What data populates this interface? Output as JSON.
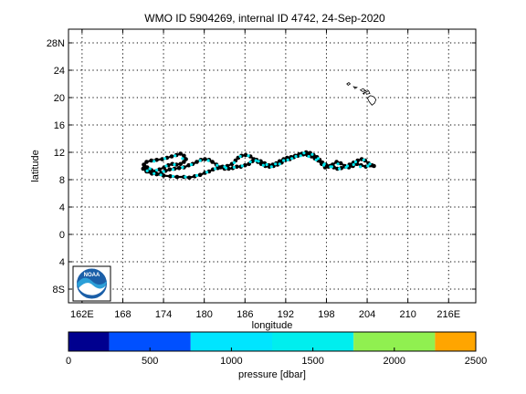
{
  "chart_data": {
    "type": "scatter",
    "title": "WMO ID 5904269, internal ID 4742, 24-Sep-2020",
    "xlabel": "longitude",
    "ylabel": "latitude",
    "xlim": [
      160,
      220
    ],
    "ylim": [
      -10,
      30
    ],
    "grid": true,
    "x_ticks": [
      {
        "value": 162,
        "label": "162E"
      },
      {
        "value": 168,
        "label": "168"
      },
      {
        "value": 174,
        "label": "174"
      },
      {
        "value": 180,
        "label": "180"
      },
      {
        "value": 186,
        "label": "186"
      },
      {
        "value": 192,
        "label": "192"
      },
      {
        "value": 198,
        "label": "198"
      },
      {
        "value": 204,
        "label": "204"
      },
      {
        "value": 210,
        "label": "210"
      },
      {
        "value": 216,
        "label": "216E"
      }
    ],
    "y_ticks": [
      {
        "value": 28,
        "label": "28N"
      },
      {
        "value": 24,
        "label": "24"
      },
      {
        "value": 20,
        "label": "20"
      },
      {
        "value": 16,
        "label": "16"
      },
      {
        "value": 12,
        "label": "12"
      },
      {
        "value": 8,
        "label": "8"
      },
      {
        "value": 4,
        "label": "4"
      },
      {
        "value": 0,
        "label": "0"
      },
      {
        "value": -4,
        "label": "4"
      },
      {
        "value": -8,
        "label": "8S"
      }
    ],
    "series": [
      {
        "marker_color": "#000000",
        "parking_color": "#00e5ee",
        "points": [
          [
            205.0,
            10.0
          ],
          [
            204.4,
            10.1
          ],
          [
            203.8,
            9.9
          ],
          [
            203.1,
            10.1
          ],
          [
            202.5,
            10.3
          ],
          [
            201.9,
            10.0
          ],
          [
            201.3,
            9.8
          ],
          [
            200.7,
            10.0
          ],
          [
            200.1,
            10.4
          ],
          [
            199.5,
            10.6
          ],
          [
            198.9,
            10.2
          ],
          [
            198.3,
            9.9
          ],
          [
            197.8,
            9.8
          ],
          [
            197.3,
            10.3
          ],
          [
            196.8,
            10.8
          ],
          [
            196.3,
            11.1
          ],
          [
            195.8,
            11.4
          ],
          [
            195.2,
            11.6
          ],
          [
            194.6,
            11.7
          ],
          [
            194.0,
            11.7
          ],
          [
            193.4,
            11.5
          ],
          [
            192.8,
            11.3
          ],
          [
            192.2,
            11.2
          ],
          [
            191.7,
            11.0
          ],
          [
            191.1,
            10.7
          ],
          [
            190.6,
            10.4
          ],
          [
            190.1,
            10.2
          ],
          [
            189.5,
            10.1
          ],
          [
            188.9,
            10.4
          ],
          [
            188.3,
            10.7
          ],
          [
            187.7,
            10.9
          ],
          [
            187.1,
            10.7
          ],
          [
            186.6,
            10.3
          ],
          [
            186.0,
            10.1
          ],
          [
            185.4,
            9.9
          ],
          [
            184.8,
            9.9
          ],
          [
            184.2,
            9.7
          ],
          [
            183.6,
            9.6
          ],
          [
            183.0,
            9.6
          ],
          [
            182.4,
            9.8
          ],
          [
            181.8,
            10.2
          ],
          [
            181.2,
            10.6
          ],
          [
            180.7,
            10.9
          ],
          [
            180.1,
            11.0
          ],
          [
            179.5,
            10.9
          ],
          [
            178.9,
            10.6
          ],
          [
            178.3,
            10.3
          ],
          [
            177.7,
            10.1
          ],
          [
            177.0,
            9.8
          ],
          [
            176.3,
            9.7
          ],
          [
            175.6,
            9.6
          ],
          [
            174.9,
            9.5
          ],
          [
            174.3,
            9.3
          ],
          [
            173.7,
            9.0
          ],
          [
            173.0,
            8.8
          ],
          [
            172.3,
            8.9
          ],
          [
            171.7,
            9.2
          ],
          [
            171.3,
            9.7
          ],
          [
            171.1,
            10.2
          ],
          [
            171.5,
            10.6
          ],
          [
            172.2,
            10.8
          ],
          [
            173.0,
            10.9
          ],
          [
            173.8,
            11.0
          ],
          [
            174.5,
            11.2
          ],
          [
            175.2,
            11.4
          ],
          [
            175.9,
            11.6
          ],
          [
            176.5,
            11.8
          ],
          [
            177.0,
            11.5
          ],
          [
            177.3,
            11.0
          ],
          [
            177.0,
            10.6
          ],
          [
            176.5,
            10.3
          ],
          [
            175.9,
            10.2
          ],
          [
            175.3,
            10.3
          ],
          [
            174.7,
            10.1
          ],
          [
            174.1,
            9.8
          ],
          [
            173.4,
            9.5
          ],
          [
            172.8,
            9.2
          ],
          [
            172.2,
            9.4
          ],
          [
            171.6,
            9.8
          ],
          [
            171.2,
            10.0
          ],
          [
            171.0,
            9.6
          ],
          [
            171.5,
            9.2
          ],
          [
            172.3,
            8.9
          ],
          [
            173.0,
            8.8
          ],
          [
            174.0,
            8.6
          ],
          [
            175.0,
            8.5
          ],
          [
            176.0,
            8.4
          ],
          [
            177.0,
            8.4
          ],
          [
            177.8,
            8.3
          ],
          [
            178.6,
            8.5
          ],
          [
            179.4,
            8.7
          ],
          [
            180.1,
            9.0
          ],
          [
            180.7,
            9.2
          ],
          [
            181.3,
            9.5
          ],
          [
            182.0,
            9.7
          ],
          [
            182.7,
            9.9
          ],
          [
            183.4,
            10.0
          ],
          [
            184.1,
            10.3
          ],
          [
            184.6,
            10.8
          ],
          [
            185.0,
            11.2
          ],
          [
            185.5,
            11.5
          ],
          [
            186.1,
            11.6
          ],
          [
            186.8,
            11.4
          ],
          [
            187.3,
            11.0
          ],
          [
            187.9,
            10.6
          ],
          [
            188.4,
            10.3
          ],
          [
            189.0,
            10.0
          ],
          [
            189.6,
            9.9
          ],
          [
            190.2,
            10.0
          ],
          [
            190.8,
            10.2
          ],
          [
            191.4,
            10.5
          ],
          [
            192.0,
            10.9
          ],
          [
            192.6,
            11.0
          ],
          [
            193.2,
            11.3
          ],
          [
            193.8,
            11.5
          ],
          [
            194.4,
            11.8
          ],
          [
            195.0,
            12.0
          ],
          [
            195.6,
            11.9
          ],
          [
            196.1,
            11.6
          ],
          [
            196.6,
            11.3
          ],
          [
            197.0,
            10.9
          ],
          [
            197.4,
            10.5
          ],
          [
            197.9,
            10.2
          ],
          [
            198.5,
            10.0
          ],
          [
            199.1,
            9.8
          ],
          [
            199.6,
            9.6
          ],
          [
            200.2,
            9.7
          ],
          [
            200.8,
            9.9
          ],
          [
            201.4,
            10.2
          ],
          [
            202.0,
            10.5
          ],
          [
            202.6,
            10.8
          ],
          [
            203.2,
            11.0
          ],
          [
            203.7,
            10.8
          ],
          [
            204.2,
            10.4
          ],
          [
            204.7,
            10.1
          ]
        ],
        "parking_points": [
          [
            204.1,
            10.0
          ],
          [
            203.0,
            9.9
          ],
          [
            202.0,
            10.2
          ],
          [
            200.9,
            9.8
          ],
          [
            199.7,
            10.3
          ],
          [
            198.6,
            9.9
          ],
          [
            197.6,
            10.1
          ],
          [
            196.5,
            10.9
          ],
          [
            195.4,
            11.4
          ],
          [
            194.2,
            11.5
          ],
          [
            192.9,
            11.1
          ],
          [
            191.7,
            10.8
          ],
          [
            190.5,
            10.3
          ],
          [
            189.2,
            10.2
          ],
          [
            188.0,
            10.7
          ],
          [
            186.8,
            10.6
          ],
          [
            185.6,
            10.0
          ],
          [
            184.4,
            9.8
          ],
          [
            183.2,
            9.7
          ],
          [
            181.9,
            10.1
          ],
          [
            180.6,
            10.8
          ],
          [
            179.4,
            10.8
          ],
          [
            178.1,
            10.2
          ],
          [
            176.8,
            9.8
          ],
          [
            175.4,
            9.5
          ],
          [
            174.0,
            9.2
          ],
          [
            172.6,
            8.9
          ],
          [
            171.6,
            9.3
          ],
          [
            172.6,
            10.7
          ],
          [
            174.2,
            11.1
          ],
          [
            175.7,
            11.5
          ],
          [
            176.8,
            11.1
          ],
          [
            175.6,
            10.2
          ],
          [
            174.4,
            10.0
          ],
          [
            173.0,
            9.4
          ],
          [
            172.0,
            9.6
          ],
          [
            173.6,
            8.7
          ],
          [
            175.4,
            8.5
          ],
          [
            177.2,
            8.4
          ],
          [
            178.9,
            8.6
          ],
          [
            180.4,
            9.1
          ],
          [
            181.6,
            9.6
          ],
          [
            183.0,
            9.9
          ],
          [
            184.4,
            10.5
          ],
          [
            185.3,
            11.4
          ],
          [
            186.5,
            11.5
          ],
          [
            187.6,
            10.8
          ],
          [
            188.7,
            10.1
          ],
          [
            189.9,
            9.9
          ],
          [
            191.1,
            10.3
          ],
          [
            192.3,
            10.9
          ],
          [
            193.5,
            11.4
          ],
          [
            194.7,
            11.9
          ],
          [
            195.9,
            11.7
          ],
          [
            196.8,
            11.1
          ],
          [
            197.7,
            10.3
          ],
          [
            198.8,
            9.9
          ],
          [
            199.9,
            9.6
          ],
          [
            201.1,
            10.0
          ],
          [
            202.3,
            10.6
          ],
          [
            203.5,
            10.9
          ],
          [
            204.4,
            10.3
          ]
        ]
      }
    ],
    "islands": [
      [
        [
          201.0,
          22.0
        ],
        [
          201.3,
          22.2
        ],
        [
          201.5,
          22.0
        ],
        [
          201.2,
          21.8
        ]
      ],
      [
        [
          202.0,
          21.6
        ],
        [
          202.5,
          21.5
        ],
        [
          202.2,
          21.3
        ]
      ],
      [
        [
          203.0,
          21.1
        ],
        [
          203.4,
          21.3
        ],
        [
          203.8,
          21.0
        ],
        [
          203.3,
          20.9
        ]
      ],
      [
        [
          203.4,
          20.6
        ],
        [
          203.7,
          20.8
        ],
        [
          203.5,
          20.5
        ]
      ],
      [
        [
          203.8,
          20.8
        ],
        [
          204.2,
          21.0
        ],
        [
          204.4,
          20.6
        ],
        [
          203.9,
          20.5
        ]
      ],
      [
        [
          204.1,
          20.0
        ],
        [
          204.5,
          20.3
        ],
        [
          205.0,
          20.1
        ],
        [
          205.3,
          19.7
        ],
        [
          205.1,
          19.2
        ],
        [
          204.7,
          18.9
        ],
        [
          204.3,
          19.4
        ],
        [
          204.1,
          19.8
        ]
      ]
    ],
    "colorbar": {
      "label": "pressure [dbar]",
      "ticks": [
        {
          "value": 0,
          "label": "0"
        },
        {
          "value": 500,
          "label": "500"
        },
        {
          "value": 1000,
          "label": "1000"
        },
        {
          "value": 1500,
          "label": "1500"
        },
        {
          "value": 2000,
          "label": "2000"
        },
        {
          "value": 2500,
          "label": "2500"
        }
      ],
      "range": [
        0,
        2500
      ],
      "bins": [
        {
          "from": 0,
          "to": 250,
          "color": "#00008f"
        },
        {
          "from": 250,
          "to": 750,
          "color": "#0050ff"
        },
        {
          "from": 750,
          "to": 1250,
          "color": "#00e5ff"
        },
        {
          "from": 1250,
          "to": 1750,
          "color": "#00eeee"
        },
        {
          "from": 1750,
          "to": 2250,
          "color": "#90f050"
        },
        {
          "from": 2250,
          "to": 2500,
          "color": "#ffa500"
        }
      ]
    },
    "logo": {
      "text": "NOAA",
      "icon": "noaa-logo-icon"
    }
  }
}
